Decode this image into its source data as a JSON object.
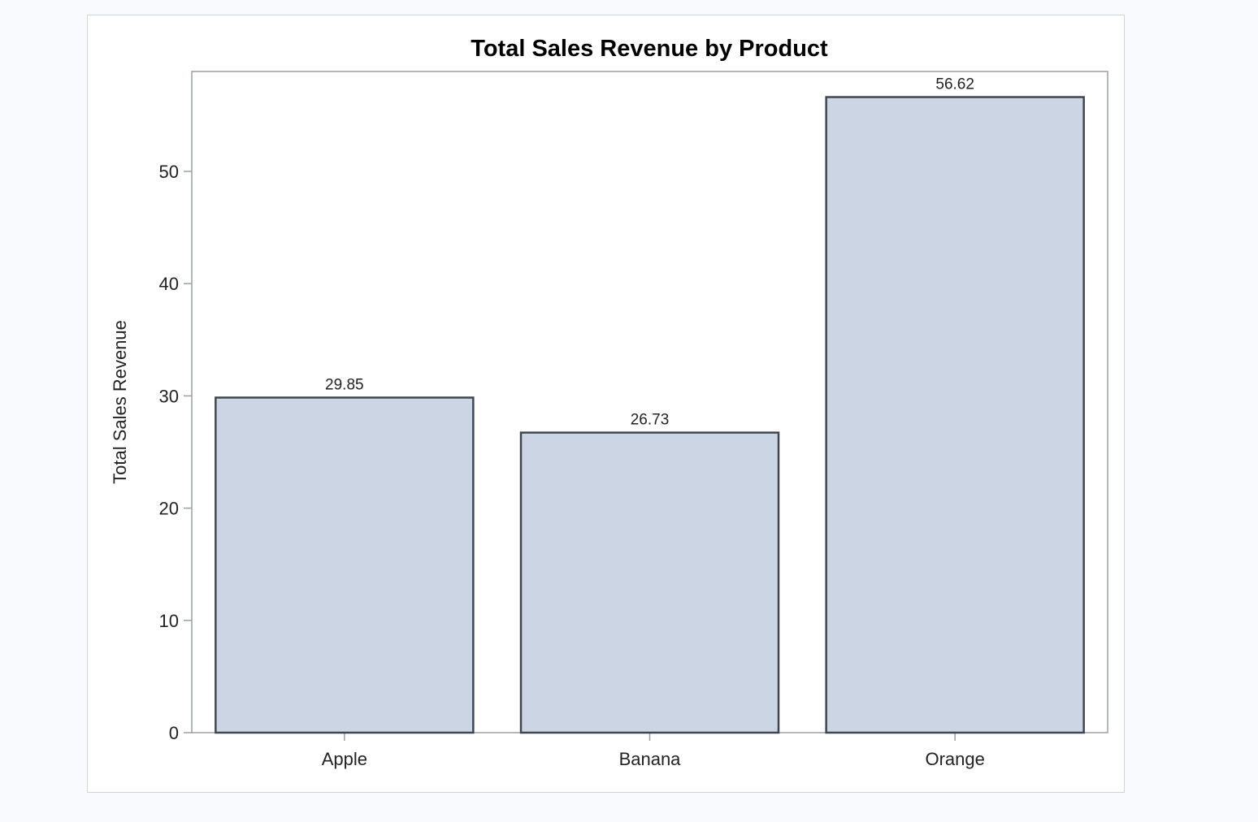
{
  "chart_data": {
    "type": "bar",
    "title": "Total Sales Revenue by Product",
    "xlabel": "",
    "ylabel": "Total Sales Revenue",
    "categories": [
      "Apple",
      "Banana",
      "Orange"
    ],
    "values": [
      29.85,
      26.73,
      56.62
    ],
    "data_labels": [
      "29.85",
      "26.73",
      "56.62"
    ],
    "ylim": [
      0,
      59
    ],
    "yticks": [
      0,
      10,
      20,
      30,
      40,
      50
    ],
    "grid": false,
    "legend": "none",
    "colors": {
      "bar_fill": "#cbd5e4",
      "bar_stroke": "#3f4650",
      "axis": "#9a9fa6"
    }
  }
}
